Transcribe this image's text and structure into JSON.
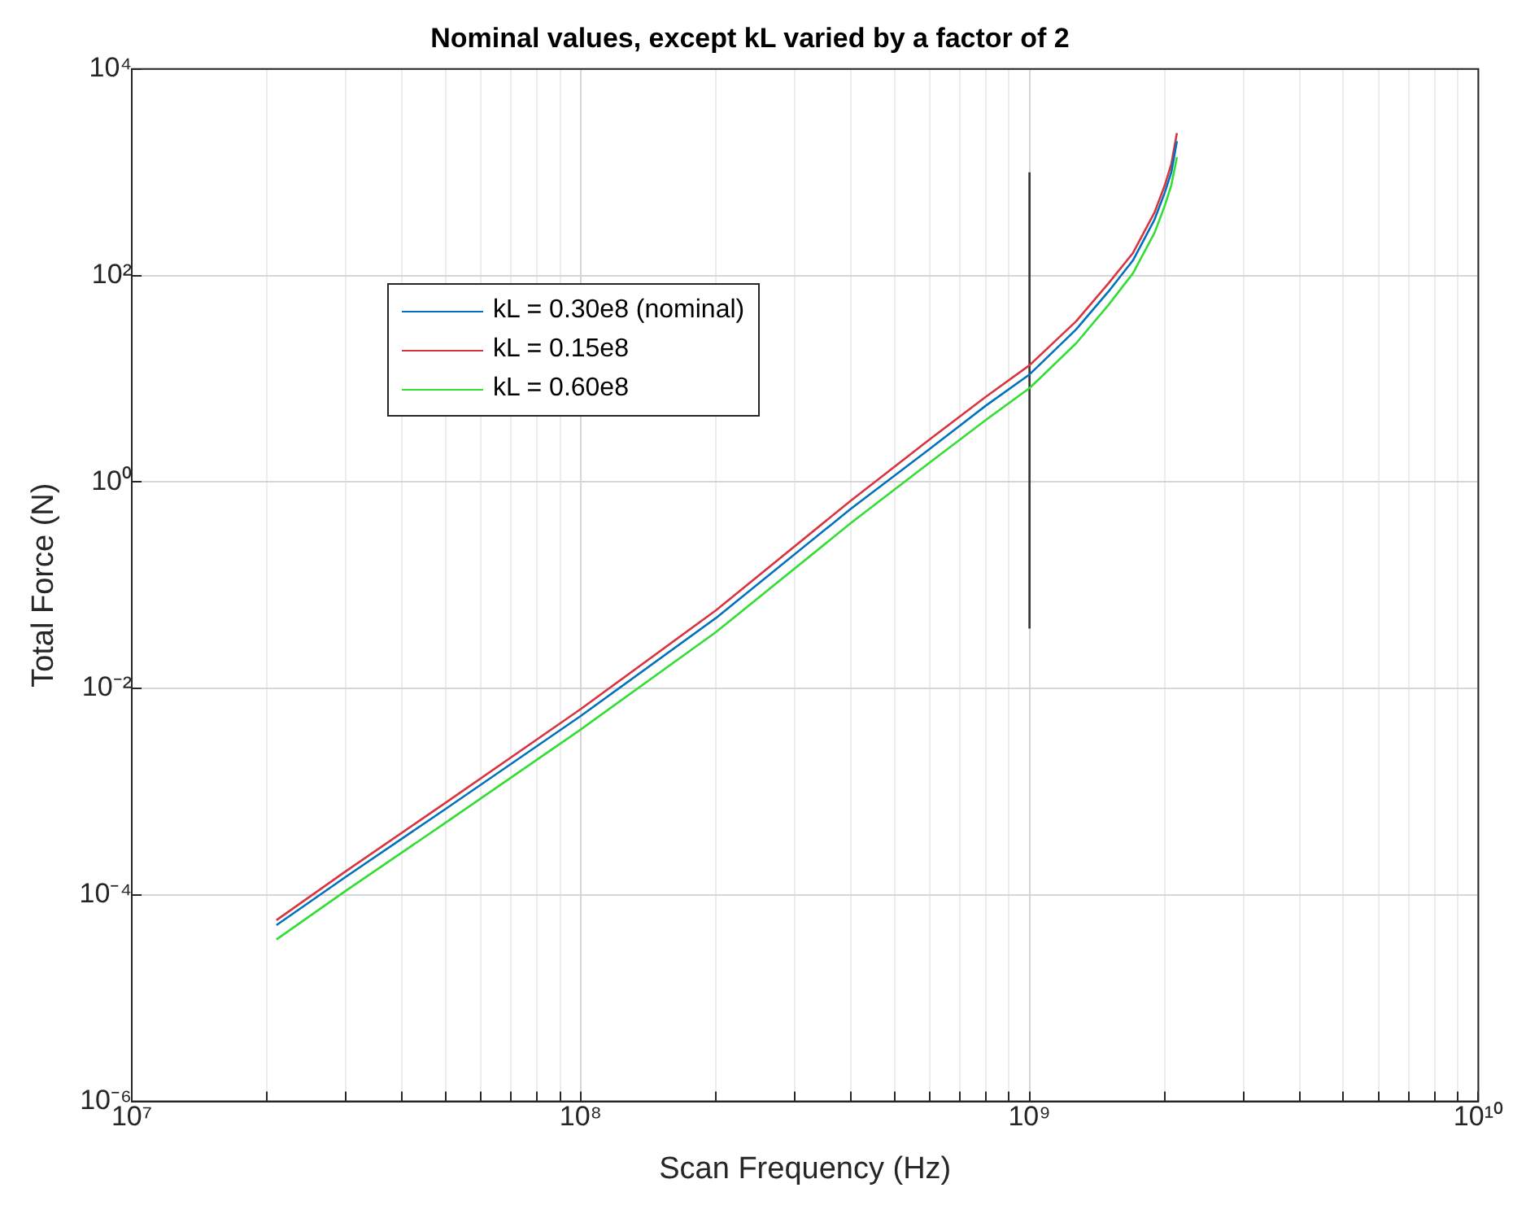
{
  "chart_data": {
    "type": "line",
    "title": "Nominal values, except kL varied by a factor of 2",
    "xlabel": "Scan Frequency (Hz)",
    "ylabel": "Total Force (N)",
    "log": "xy",
    "grid": true,
    "legend": "top left",
    "marker": "none",
    "line_style": "solid",
    "xlim": [
      10000000,
      10000000000
    ],
    "ylim": [
      1e-06,
      10000
    ],
    "xticks": [
      {
        "value": 10000000,
        "label": "10⁷"
      },
      {
        "value": 20000000,
        "label": null
      },
      {
        "value": 30000000,
        "label": null
      },
      {
        "value": 40000000,
        "label": null
      },
      {
        "value": 50000000,
        "label": null
      },
      {
        "value": 60000000,
        "label": null
      },
      {
        "value": 70000000,
        "label": null
      },
      {
        "value": 80000000,
        "label": null
      },
      {
        "value": 90000000,
        "label": null
      },
      {
        "value": 100000000,
        "label": "10⁸"
      },
      {
        "value": 200000000,
        "label": null
      },
      {
        "value": 300000000,
        "label": null
      },
      {
        "value": 400000000,
        "label": null
      },
      {
        "value": 500000000,
        "label": null
      },
      {
        "value": 600000000,
        "label": null
      },
      {
        "value": 700000000,
        "label": null
      },
      {
        "value": 800000000,
        "label": null
      },
      {
        "value": 900000000,
        "label": null
      },
      {
        "value": 1000000000,
        "label": "10⁹"
      },
      {
        "value": 2000000000,
        "label": null
      },
      {
        "value": 3000000000,
        "label": null
      },
      {
        "value": 4000000000,
        "label": null
      },
      {
        "value": 5000000000,
        "label": null
      },
      {
        "value": 6000000000,
        "label": null
      },
      {
        "value": 7000000000,
        "label": null
      },
      {
        "value": 8000000000,
        "label": null
      },
      {
        "value": 9000000000,
        "label": null
      },
      {
        "value": 10000000000,
        "label": "10¹⁰"
      }
    ],
    "yticks": [
      {
        "value": 1e-06,
        "label": "10⁻⁶"
      },
      {
        "value": 0.0001,
        "label": "10⁻⁴"
      },
      {
        "value": 0.01,
        "label": "10⁻²"
      },
      {
        "value": 1,
        "label": "10⁰"
      },
      {
        "value": 100,
        "label": "10²"
      },
      {
        "value": 10000,
        "label": "10⁴"
      }
    ],
    "series": [
      {
        "name": "kL = 0.30e8 (nominal)",
        "color": "#0072bd",
        "x": [
          21000000,
          30000000,
          50000000,
          100000000,
          200000000,
          400000000,
          600000000,
          800000000,
          1000000000,
          1270000000,
          1500000000,
          1700000000,
          1900000000,
          2000000000,
          2070000000,
          2130000000
        ],
        "values": [
          5.1e-05,
          0.00015,
          0.00068,
          0.0054,
          0.048,
          0.55,
          2.1,
          5.5,
          11,
          30,
          70,
          140,
          350,
          630,
          1000,
          2000
        ]
      },
      {
        "name": "kL = 0.15e8",
        "color": "#d9343f",
        "x": [
          21000000,
          30000000,
          50000000,
          100000000,
          200000000,
          400000000,
          600000000,
          800000000,
          1000000000,
          1270000000,
          1500000000,
          1700000000,
          1900000000,
          2000000000,
          2070000000,
          2130000000
        ],
        "values": [
          5.7e-05,
          0.00017,
          0.00078,
          0.0063,
          0.057,
          0.66,
          2.6,
          6.7,
          13.5,
          36,
          84,
          165,
          410,
          740,
          1200,
          2400
        ]
      },
      {
        "name": "kL = 0.60e8",
        "color": "#33dd33",
        "x": [
          21000000,
          30000000,
          50000000,
          100000000,
          200000000,
          400000000,
          600000000,
          800000000,
          1000000000,
          1270000000,
          1500000000,
          1700000000,
          1900000000,
          2000000000,
          2070000000,
          2130000000
        ],
        "values": [
          3.7e-05,
          0.00011,
          0.0005,
          0.004,
          0.035,
          0.4,
          1.55,
          4,
          8.1,
          22,
          52,
          105,
          260,
          470,
          750,
          1400
        ]
      },
      {
        "color": "#333333",
        "x": [
          1000000000,
          1000000000
        ],
        "values": [
          0.038,
          1000
        ]
      }
    ]
  }
}
